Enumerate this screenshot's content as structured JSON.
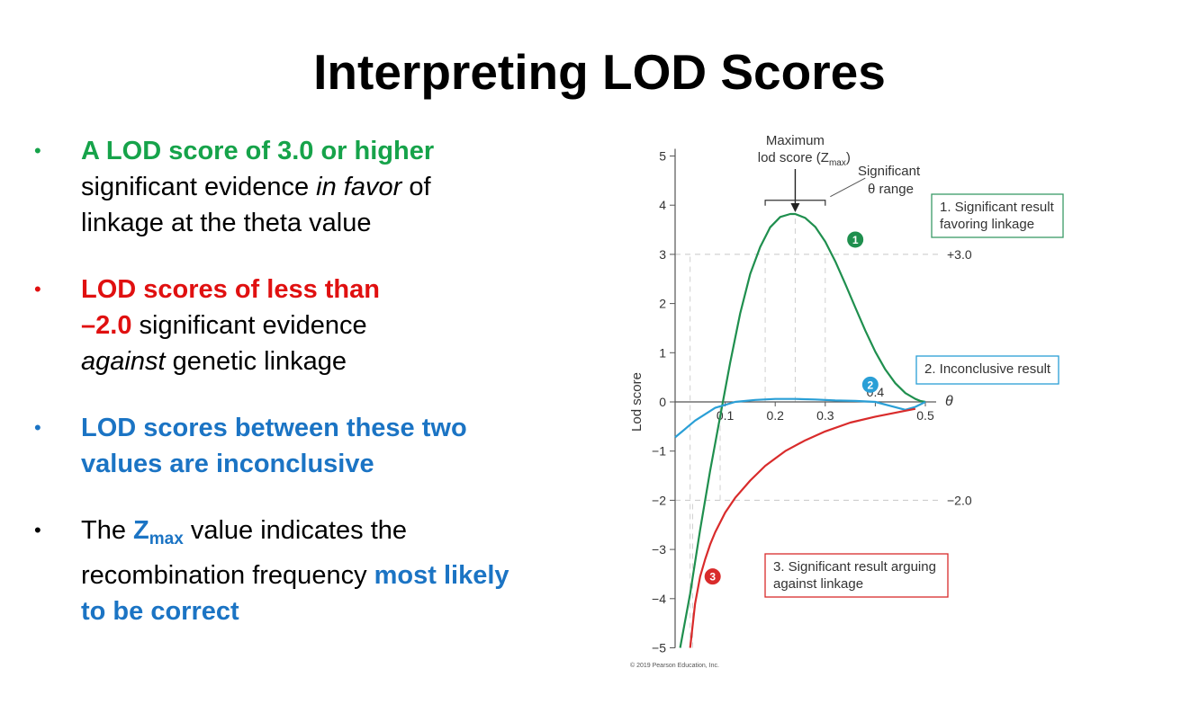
{
  "slide": {
    "title": "Interpreting LOD Scores"
  },
  "bullets": [
    {
      "highlight": "A LOD score of 3.0 or higher",
      "text_a": " significant evidence ",
      "italic": "in favor",
      "text_b": " of linkage at the theta value"
    },
    {
      "highlight_a": "LOD scores of less than",
      "highlight_b": "–2.0",
      "text": " significant evidence ",
      "italic": "against",
      "text_b": " genetic linkage"
    },
    {
      "highlight": "LOD scores between these two values are inconclusive"
    },
    {
      "text_a": "The ",
      "z": "Z",
      "zsub": "max",
      "text_b": " value indicates the recombination frequency ",
      "highlight": "most likely to be correct"
    }
  ],
  "colors": {
    "green": "#16a34a",
    "red": "#e01010",
    "blue": "#1b74c4",
    "curve1": "#1f8f4e",
    "curve2": "#2a9fd6",
    "curve3": "#d92b2b"
  },
  "chart_data": {
    "type": "line",
    "ylabel": "Lod score",
    "xlabel": "θ",
    "xlim": [
      0,
      0.5
    ],
    "ylim": [
      -5,
      5
    ],
    "xticks": [
      "0.1",
      "0.2",
      "0.3",
      "0.4",
      "0.5"
    ],
    "yticks": [
      "5",
      "4",
      "3",
      "2",
      "1",
      "0",
      "−1",
      "−2",
      "−3",
      "−4",
      "−5"
    ],
    "thresholds": [
      {
        "y": 3.0,
        "label": "+3.0"
      },
      {
        "y": -2.0,
        "label": "−2.0"
      }
    ],
    "series": [
      {
        "marker": "1",
        "x": [
          0.01,
          0.03,
          0.05,
          0.07,
          0.09,
          0.11,
          0.13,
          0.15,
          0.17,
          0.19,
          0.21,
          0.23,
          0.24,
          0.26,
          0.28,
          0.3,
          0.32,
          0.34,
          0.36,
          0.38,
          0.4,
          0.42,
          0.44,
          0.46,
          0.48,
          0.49,
          0.5
        ],
        "y": [
          -5.0,
          -3.9,
          -2.6,
          -1.4,
          -0.3,
          0.8,
          1.8,
          2.6,
          3.15,
          3.55,
          3.76,
          3.82,
          3.82,
          3.74,
          3.56,
          3.26,
          2.86,
          2.4,
          1.92,
          1.45,
          1.02,
          0.66,
          0.38,
          0.18,
          0.06,
          0.02,
          0.0
        ]
      },
      {
        "marker": "2",
        "x": [
          0.0,
          0.04,
          0.08,
          0.12,
          0.16,
          0.2,
          0.24,
          0.28,
          0.32,
          0.36,
          0.4,
          0.43,
          0.46,
          0.48,
          0.5
        ],
        "y": [
          -0.72,
          -0.38,
          -0.12,
          0.0,
          0.04,
          0.06,
          0.06,
          0.05,
          0.03,
          0.02,
          0.0,
          -0.08,
          -0.16,
          -0.1,
          0.0
        ]
      },
      {
        "marker": "3",
        "x": [
          0.03,
          0.04,
          0.05,
          0.06,
          0.07,
          0.08,
          0.1,
          0.12,
          0.15,
          0.18,
          0.22,
          0.26,
          0.3,
          0.35,
          0.4,
          0.45,
          0.48
        ],
        "y": [
          -5.0,
          -4.1,
          -3.55,
          -3.2,
          -2.9,
          -2.65,
          -2.25,
          -1.95,
          -1.6,
          -1.3,
          -1.0,
          -0.78,
          -0.6,
          -0.42,
          -0.3,
          -0.2,
          -0.14
        ]
      }
    ],
    "annotations": {
      "zmax_line1": "Maximum",
      "zmax_line2a": "lod score (Z",
      "zmax_sub": "max",
      "zmax_line2b": ")",
      "range_line1": "Significant",
      "range_line2": "θ range",
      "box1_line1": "1. Significant result",
      "box1_line2": "favoring linkage",
      "box2": "2. Inconclusive result",
      "box3_line1": "3. Significant result arguing",
      "box3_line2": "against linkage",
      "copyright": "© 2019 Pearson Education, Inc."
    }
  }
}
